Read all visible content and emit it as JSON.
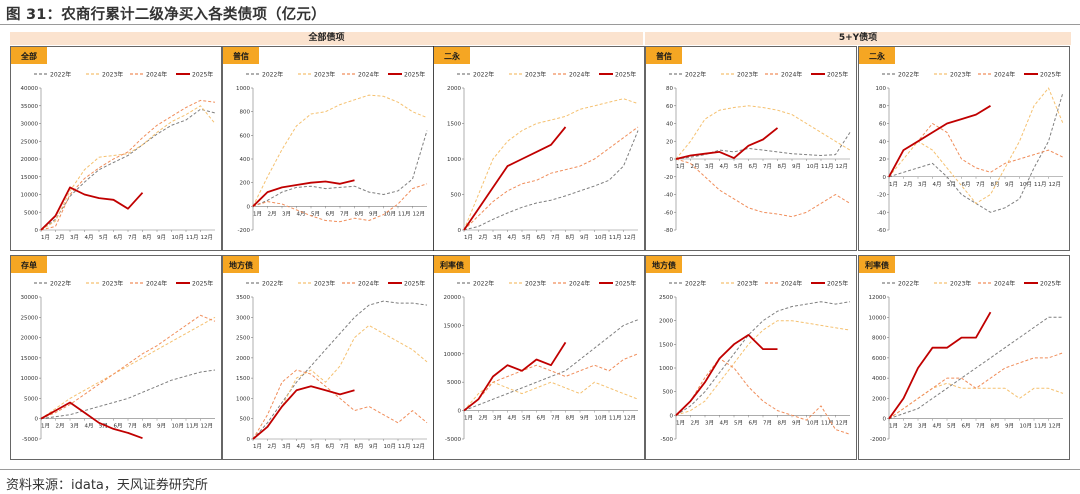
{
  "title": "图 31：农商行累计二级净买入各类债项（亿元）",
  "source": "资料来源：idata，天风证券研究所",
  "groups": [
    "全部债项",
    "5+Y债项"
  ],
  "legend": [
    "2022年",
    "2023年",
    "2024年",
    "2025年"
  ],
  "colors": {
    "y2022": "#7f7f7f",
    "y2023": "#f5c170",
    "y2024": "#f08d5a",
    "y2025": "#c00000",
    "label_bg": "#f5a623",
    "group_bg": "#fbe3cf"
  },
  "chart_data": [
    {
      "type": "line",
      "title": "全部",
      "group": "全部债项",
      "ylim": [
        0,
        40000
      ],
      "yticks": [
        0,
        5000,
        10000,
        15000,
        20000,
        25000,
        30000,
        35000,
        40000
      ],
      "xlabels": [
        "1月",
        "2月",
        "3月",
        "4月",
        "5月",
        "6月",
        "7月",
        "8月",
        "9月",
        "10月",
        "11月",
        "12月"
      ],
      "series": [
        {
          "name": "2022年",
          "values": [
            0,
            3000,
            9500,
            13500,
            17000,
            19000,
            21000,
            24000,
            27000,
            29500,
            31000,
            34000,
            33000
          ]
        },
        {
          "name": "2023年",
          "values": [
            0,
            2500,
            11000,
            17000,
            20500,
            21000,
            21500,
            24000,
            27500,
            30500,
            32500,
            35000,
            30000
          ]
        },
        {
          "name": "2024年",
          "values": [
            0,
            1000,
            10000,
            14500,
            17500,
            20000,
            22000,
            26000,
            29500,
            32000,
            34500,
            36500,
            36000
          ]
        },
        {
          "name": "2025年",
          "values": [
            0,
            4000,
            12000,
            10000,
            9000,
            8500,
            6000,
            10500
          ]
        }
      ]
    },
    {
      "type": "line",
      "title": "普信",
      "group": "全部债项",
      "ylim": [
        -200,
        1000
      ],
      "yticks": [
        -200,
        0,
        200,
        400,
        600,
        800,
        1000
      ],
      "xlabels": [
        "1月",
        "2月",
        "3月",
        "4月",
        "5月",
        "6月",
        "7月",
        "8月",
        "9月",
        "10月",
        "11月",
        "12月"
      ],
      "series": [
        {
          "name": "2022年",
          "values": [
            0,
            50,
            120,
            160,
            170,
            150,
            160,
            170,
            120,
            100,
            130,
            230,
            640
          ]
        },
        {
          "name": "2023年",
          "values": [
            0,
            250,
            480,
            680,
            780,
            800,
            860,
            900,
            940,
            930,
            880,
            800,
            750
          ]
        },
        {
          "name": "2024年",
          "values": [
            0,
            40,
            20,
            -30,
            -80,
            -120,
            -130,
            -100,
            -120,
            -70,
            20,
            150,
            190
          ]
        },
        {
          "name": "2025年",
          "values": [
            0,
            120,
            160,
            180,
            200,
            210,
            190,
            220
          ]
        }
      ]
    },
    {
      "type": "line",
      "title": "二永",
      "group": "全部债项",
      "ylim": [
        0,
        2000
      ],
      "yticks": [
        0,
        500,
        1000,
        1500,
        2000
      ],
      "xlabels": [
        "1月",
        "2月",
        "3月",
        "4月",
        "5月",
        "6月",
        "7月",
        "8月",
        "9月",
        "10月",
        "11月",
        "12月"
      ],
      "series": [
        {
          "name": "2022年",
          "values": [
            0,
            50,
            150,
            240,
            320,
            380,
            420,
            480,
            550,
            620,
            700,
            900,
            1400
          ]
        },
        {
          "name": "2023年",
          "values": [
            0,
            500,
            1000,
            1250,
            1400,
            1500,
            1550,
            1600,
            1700,
            1750,
            1800,
            1850,
            1780
          ]
        },
        {
          "name": "2024年",
          "values": [
            0,
            200,
            400,
            550,
            650,
            700,
            800,
            850,
            900,
            1000,
            1150,
            1300,
            1450
          ]
        },
        {
          "name": "2025年",
          "values": [
            0,
            300,
            600,
            900,
            1000,
            1100,
            1200,
            1450
          ]
        }
      ]
    },
    {
      "type": "line",
      "title": "普信",
      "group": "5+Y债项",
      "ylim": [
        -80,
        80
      ],
      "yticks": [
        -80,
        -60,
        -40,
        -20,
        0,
        20,
        40,
        60,
        80
      ],
      "xlabels": [
        "1月",
        "2月",
        "3月",
        "4月",
        "5月",
        "6月",
        "7月",
        "8月",
        "9月",
        "10月",
        "11月",
        "12月"
      ],
      "series": [
        {
          "name": "2022年",
          "values": [
            0,
            2,
            5,
            10,
            8,
            12,
            10,
            8,
            6,
            5,
            4,
            5,
            30
          ]
        },
        {
          "name": "2023年",
          "values": [
            0,
            20,
            45,
            55,
            58,
            60,
            58,
            55,
            50,
            40,
            30,
            20,
            10
          ]
        },
        {
          "name": "2024年",
          "values": [
            0,
            -5,
            -20,
            -35,
            -45,
            -55,
            -60,
            -62,
            -65,
            -60,
            -50,
            -40,
            -50
          ]
        },
        {
          "name": "2025年",
          "values": [
            0,
            4,
            6,
            8,
            1,
            15,
            22,
            35
          ]
        }
      ]
    },
    {
      "type": "line",
      "title": "二永",
      "group": "5+Y债项",
      "ylim": [
        -60,
        100
      ],
      "yticks": [
        -60,
        -40,
        -20,
        0,
        20,
        40,
        60,
        80,
        100
      ],
      "xlabels": [
        "1月",
        "2月",
        "3月",
        "4月",
        "5月",
        "6月",
        "7月",
        "8月",
        "9月",
        "10月",
        "11月",
        "12月"
      ],
      "series": [
        {
          "name": "2022年",
          "values": [
            0,
            5,
            10,
            15,
            0,
            -20,
            -30,
            -40,
            -35,
            -25,
            10,
            40,
            95
          ]
        },
        {
          "name": "2023年",
          "values": [
            0,
            20,
            40,
            30,
            10,
            -10,
            -30,
            -20,
            10,
            40,
            80,
            100,
            60
          ]
        },
        {
          "name": "2024年",
          "values": [
            0,
            30,
            40,
            60,
            50,
            20,
            10,
            5,
            15,
            20,
            25,
            30,
            22
          ]
        },
        {
          "name": "2025年",
          "values": [
            0,
            30,
            40,
            50,
            60,
            65,
            70,
            80
          ]
        }
      ]
    },
    {
      "type": "line",
      "title": "存单",
      "group": "全部债项",
      "ylim": [
        -5000,
        30000
      ],
      "yticks": [
        -5000,
        0,
        5000,
        10000,
        15000,
        20000,
        25000,
        30000
      ],
      "xlabels": [
        "1月",
        "2月",
        "3月",
        "4月",
        "5月",
        "6月",
        "7月",
        "8月",
        "9月",
        "10月",
        "11月",
        "12月"
      ],
      "series": [
        {
          "name": "2022年",
          "values": [
            0,
            500,
            1000,
            2000,
            3000,
            4000,
            5000,
            6500,
            8000,
            9500,
            10500,
            11500,
            12000
          ]
        },
        {
          "name": "2023年",
          "values": [
            0,
            2500,
            5000,
            7000,
            9000,
            11000,
            13000,
            15000,
            17000,
            19000,
            21000,
            23000,
            25000
          ]
        },
        {
          "name": "2024年",
          "values": [
            0,
            1500,
            3500,
            6000,
            8500,
            11000,
            13500,
            16000,
            18000,
            20500,
            23000,
            25500,
            24000
          ]
        },
        {
          "name": "2025年",
          "values": [
            0,
            2000,
            4000,
            1500,
            -1000,
            -2500,
            -3500,
            -4800
          ]
        }
      ]
    },
    {
      "type": "line",
      "title": "地方债",
      "group": "全部债项",
      "ylim": [
        0,
        3500
      ],
      "yticks": [
        0,
        500,
        1000,
        1500,
        2000,
        2500,
        3000,
        3500
      ],
      "xlabels": [
        "1月",
        "2月",
        "3月",
        "4月",
        "5月",
        "6月",
        "7月",
        "8月",
        "9月",
        "10月",
        "11月",
        "12月"
      ],
      "series": [
        {
          "name": "2022年",
          "values": [
            0,
            400,
            900,
            1400,
            1800,
            2200,
            2600,
            3000,
            3300,
            3400,
            3350,
            3350,
            3300
          ]
        },
        {
          "name": "2023年",
          "values": [
            0,
            300,
            800,
            1500,
            1700,
            1400,
            1800,
            2500,
            2800,
            2600,
            2400,
            2200,
            1900
          ]
        },
        {
          "name": "2024年",
          "values": [
            0,
            600,
            1400,
            1700,
            1600,
            1300,
            1000,
            700,
            800,
            600,
            400,
            700,
            400
          ]
        },
        {
          "name": "2025年",
          "values": [
            0,
            300,
            800,
            1200,
            1300,
            1200,
            1100,
            1200
          ]
        }
      ]
    },
    {
      "type": "line",
      "title": "利率债",
      "group": "全部债项",
      "ylim": [
        -5000,
        20000
      ],
      "yticks": [
        -5000,
        0,
        5000,
        10000,
        15000,
        20000
      ],
      "xlabels": [
        "1月",
        "2月",
        "3月",
        "4月",
        "5月",
        "6月",
        "7月",
        "8月",
        "9月",
        "10月",
        "11月",
        "12月"
      ],
      "series": [
        {
          "name": "2022年",
          "values": [
            0,
            1000,
            2000,
            3000,
            4000,
            5000,
            6000,
            7000,
            9000,
            11000,
            13000,
            15000,
            16000
          ]
        },
        {
          "name": "2023年",
          "values": [
            0,
            3000,
            5000,
            4000,
            3000,
            4000,
            5000,
            4000,
            3000,
            5000,
            4000,
            3000,
            2000
          ]
        },
        {
          "name": "2024年",
          "values": [
            0,
            2000,
            5000,
            6000,
            7000,
            8000,
            7000,
            6000,
            7000,
            8000,
            7000,
            9000,
            10000
          ]
        },
        {
          "name": "2025年",
          "values": [
            0,
            2000,
            6000,
            8000,
            7000,
            9000,
            8000,
            12000
          ]
        }
      ]
    },
    {
      "type": "line",
      "title": "地方债",
      "group": "5+Y债项",
      "ylim": [
        -500,
        2500
      ],
      "yticks": [
        -500,
        0,
        500,
        1000,
        1500,
        2000,
        2500
      ],
      "xlabels": [
        "1月",
        "2月",
        "3月",
        "4月",
        "5月",
        "6月",
        "7月",
        "8月",
        "9月",
        "10月",
        "11月",
        "12月"
      ],
      "series": [
        {
          "name": "2022年",
          "values": [
            0,
            200,
            500,
            900,
            1300,
            1700,
            2000,
            2200,
            2300,
            2350,
            2400,
            2350,
            2400
          ]
        },
        {
          "name": "2023年",
          "values": [
            0,
            100,
            300,
            700,
            1100,
            1500,
            1800,
            2000,
            2000,
            1950,
            1900,
            1850,
            1800
          ]
        },
        {
          "name": "2024年",
          "values": [
            0,
            300,
            800,
            1200,
            1000,
            600,
            300,
            100,
            0,
            -100,
            200,
            -300,
            -400
          ]
        },
        {
          "name": "2025年",
          "values": [
            0,
            300,
            700,
            1200,
            1500,
            1700,
            1400,
            1400
          ]
        }
      ]
    },
    {
      "type": "line",
      "title": "利率债",
      "group": "5+Y债项",
      "ylim": [
        -2000,
        12000
      ],
      "yticks": [
        -2000,
        0,
        2000,
        4000,
        6000,
        8000,
        10000,
        12000
      ],
      "xlabels": [
        "1月",
        "2月",
        "3月",
        "4月",
        "5月",
        "6月",
        "7月",
        "8月",
        "9月",
        "10月",
        "11月",
        "12月"
      ],
      "series": [
        {
          "name": "2022年",
          "values": [
            0,
            500,
            1000,
            2000,
            3000,
            4000,
            5000,
            6000,
            7000,
            8000,
            9000,
            10000,
            10000
          ]
        },
        {
          "name": "2023年",
          "values": [
            0,
            1000,
            2000,
            3000,
            3500,
            3000,
            3000,
            3000,
            3000,
            2000,
            3000,
            3000,
            2500
          ]
        },
        {
          "name": "2024年",
          "values": [
            0,
            1000,
            2000,
            3000,
            4000,
            4000,
            3000,
            4000,
            5000,
            5500,
            6000,
            6000,
            6500
          ]
        },
        {
          "name": "2025年",
          "values": [
            0,
            2000,
            5000,
            7000,
            7000,
            8000,
            8000,
            10500
          ]
        }
      ]
    }
  ]
}
